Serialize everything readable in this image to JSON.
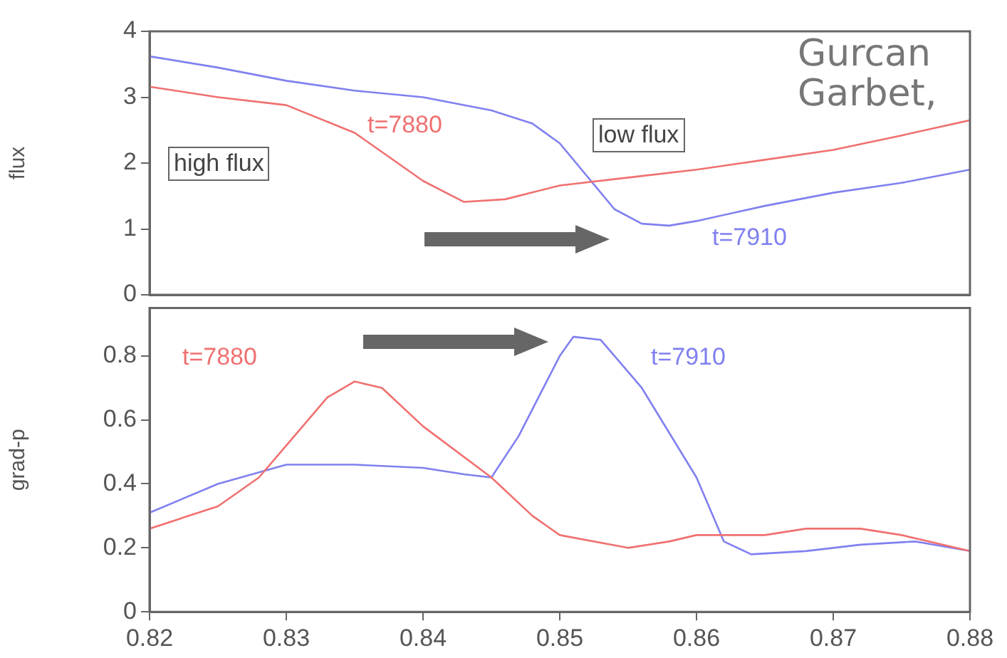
{
  "chart_data": [
    {
      "type": "line",
      "ylabel": "flux",
      "xlim": [
        0.82,
        0.88
      ],
      "ylim": [
        0,
        4
      ],
      "yticks": [
        0,
        1,
        2,
        3,
        4
      ],
      "tick_labels": "y",
      "grid": false,
      "legend": false,
      "marker": "none",
      "annotations": [
        "high flux",
        "low flux",
        "Gurcan Garbet,"
      ],
      "series": [
        {
          "name": "t=7880",
          "color": "#f07070",
          "x": [
            0.82,
            0.825,
            0.83,
            0.835,
            0.84,
            0.843,
            0.846,
            0.85,
            0.855,
            0.86,
            0.865,
            0.87,
            0.875,
            0.88
          ],
          "values": [
            3.16,
            3.0,
            2.88,
            2.46,
            1.73,
            1.41,
            1.45,
            1.66,
            1.78,
            1.9,
            2.05,
            2.2,
            2.42,
            2.65
          ]
        },
        {
          "name": "t=7910",
          "color": "#8080f0",
          "x": [
            0.82,
            0.825,
            0.83,
            0.835,
            0.84,
            0.845,
            0.848,
            0.85,
            0.852,
            0.854,
            0.856,
            0.858,
            0.86,
            0.865,
            0.87,
            0.875,
            0.88
          ],
          "values": [
            3.62,
            3.45,
            3.25,
            3.1,
            3.0,
            2.8,
            2.6,
            2.3,
            1.8,
            1.3,
            1.08,
            1.05,
            1.12,
            1.35,
            1.55,
            1.7,
            1.9
          ]
        }
      ]
    },
    {
      "type": "line",
      "ylabel": "grad-p",
      "xlim": [
        0.82,
        0.88
      ],
      "xticks": [
        0.82,
        0.83,
        0.84,
        0.85,
        0.86,
        0.87,
        0.88
      ],
      "ylim": [
        0,
        0.95
      ],
      "yticks": [
        0,
        0.2,
        0.4,
        0.6,
        0.8
      ],
      "grid": false,
      "legend": false,
      "marker": "none",
      "series": [
        {
          "name": "t=7880",
          "color": "#f07070",
          "x": [
            0.82,
            0.825,
            0.828,
            0.83,
            0.833,
            0.835,
            0.837,
            0.84,
            0.845,
            0.848,
            0.85,
            0.855,
            0.858,
            0.86,
            0.865,
            0.868,
            0.872,
            0.875,
            0.88
          ],
          "values": [
            0.26,
            0.33,
            0.42,
            0.52,
            0.67,
            0.72,
            0.7,
            0.58,
            0.42,
            0.3,
            0.24,
            0.2,
            0.22,
            0.24,
            0.24,
            0.26,
            0.26,
            0.24,
            0.19
          ]
        },
        {
          "name": "t=7910",
          "color": "#8080f0",
          "x": [
            0.82,
            0.825,
            0.83,
            0.835,
            0.84,
            0.843,
            0.845,
            0.847,
            0.85,
            0.851,
            0.853,
            0.856,
            0.86,
            0.862,
            0.864,
            0.868,
            0.872,
            0.876,
            0.88
          ],
          "values": [
            0.31,
            0.4,
            0.46,
            0.46,
            0.45,
            0.43,
            0.42,
            0.55,
            0.8,
            0.86,
            0.85,
            0.7,
            0.42,
            0.22,
            0.18,
            0.19,
            0.21,
            0.22,
            0.19
          ]
        }
      ]
    }
  ]
}
